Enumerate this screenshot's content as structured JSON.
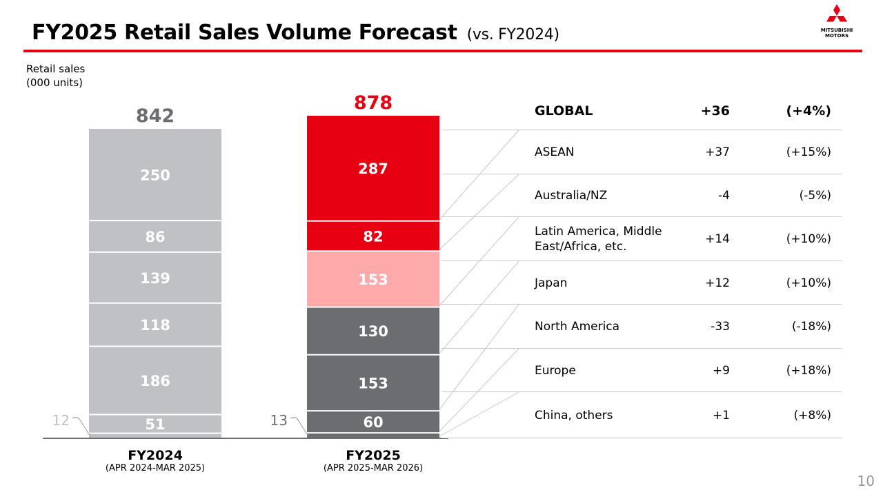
{
  "header": {
    "title": "FY2025 Retail Sales Volume Forecast",
    "subtitle": "(vs. FY2024)"
  },
  "logo": {
    "line1": "MITSUBISHI",
    "line2": "MOTORS",
    "color": "#e60012"
  },
  "page_number": "10",
  "chart_data": {
    "type": "bar",
    "stacked": true,
    "ylabel_lines": [
      "Retail sales",
      "(000 units)"
    ],
    "categories": [
      {
        "label": "FY2024",
        "sublabel": "(APR 2024-MAR 2025)",
        "total": 842
      },
      {
        "label": "FY2025",
        "sublabel": "(APR 2025-MAR 2026)",
        "total": 878
      }
    ],
    "segment_order_bottom_to_top": [
      "China, others",
      "Europe",
      "North America",
      "Japan",
      "Latin America, Middle East/Africa, etc.",
      "Australia/NZ",
      "ASEAN"
    ],
    "series": [
      {
        "name": "China, others",
        "values": [
          12,
          13
        ],
        "colors": [
          "#bfc1c4",
          "#6b6d70"
        ],
        "outside_label": true
      },
      {
        "name": "Europe",
        "values": [
          51,
          60
        ],
        "colors": [
          "#bfc1c4",
          "#6b6d70"
        ]
      },
      {
        "name": "North America",
        "values": [
          186,
          153
        ],
        "colors": [
          "#bfc1c4",
          "#6b6d70"
        ]
      },
      {
        "name": "Japan",
        "values": [
          118,
          130
        ],
        "colors": [
          "#bfc1c4",
          "#6b6d70"
        ]
      },
      {
        "name": "Latin America, Middle East/Africa, etc.",
        "values": [
          139,
          153
        ],
        "colors": [
          "#bfc1c4",
          "#ffaaaa"
        ]
      },
      {
        "name": "Australia/NZ",
        "values": [
          86,
          82
        ],
        "colors": [
          "#bfc1c4",
          "#e60012"
        ]
      },
      {
        "name": "ASEAN",
        "values": [
          250,
          287
        ],
        "colors": [
          "#bfc1c4",
          "#e60012"
        ]
      }
    ],
    "total_label_colors": [
      "#6b6d70",
      "#e60012"
    ]
  },
  "change_table": {
    "rows": [
      {
        "region": "GLOBAL",
        "delta": "+36",
        "pct": "(+4%)",
        "bold": true
      },
      {
        "region": "ASEAN",
        "delta": "+37",
        "pct": "(+15%)"
      },
      {
        "region": "Australia/NZ",
        "delta": "-4",
        "pct": "(-5%)"
      },
      {
        "region": "Latin America, Middle East/Africa, etc.",
        "region_lines": [
          "Latin America, Middle",
          "East/Africa, etc."
        ],
        "delta": "+14",
        "pct": "(+10%)"
      },
      {
        "region": "Japan",
        "delta": "+12",
        "pct": "(+10%)"
      },
      {
        "region": "North America",
        "delta": "-33",
        "pct": "(-18%)"
      },
      {
        "region": "Europe",
        "delta": "+9",
        "pct": "(+18%)"
      },
      {
        "region": "China, others",
        "delta": "+1",
        "pct": "(+8%)"
      }
    ]
  }
}
